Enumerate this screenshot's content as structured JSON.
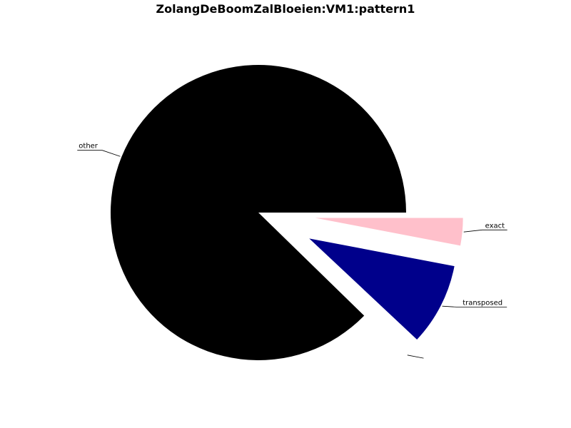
{
  "chart_data": {
    "type": "pie",
    "title": "ZolangDeBoomZalBloeien:VM1:pattern1",
    "slices": [
      {
        "label": "exact",
        "value": 3.0,
        "color": "#ffc0cb",
        "exploded": true
      },
      {
        "label": "transposed",
        "value": 9.0,
        "color": "#00008b",
        "exploded": true
      },
      {
        "label": "",
        "value": 0.3,
        "color": "#ffffff",
        "exploded": true
      },
      {
        "label": "other",
        "value": 87.7,
        "color": "#000000",
        "exploded": false
      }
    ],
    "start_angle_deg": 0,
    "direction": "clockwise",
    "legend": "none"
  }
}
